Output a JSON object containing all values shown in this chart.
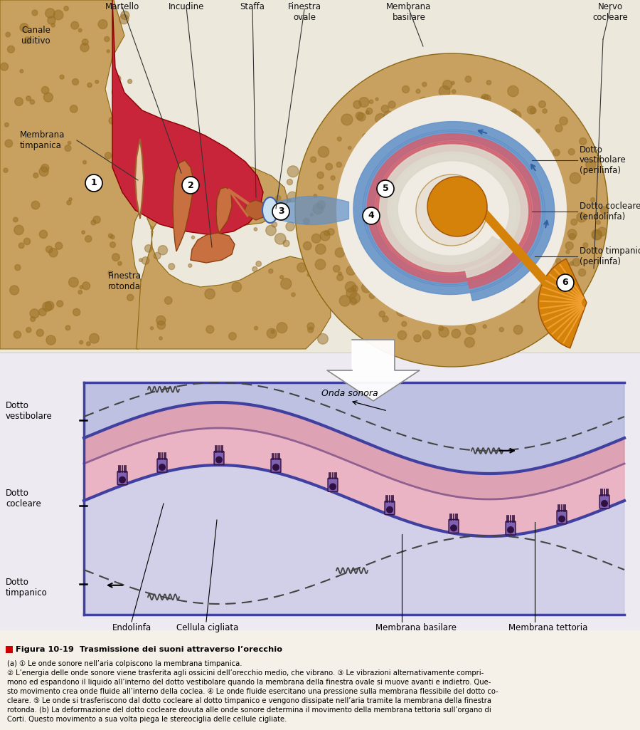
{
  "bg_color": "#f5f0e8",
  "title_color": "#cc0000",
  "figure_label": "Figura 10-19",
  "figure_title": "Trasmissione dei suoni attraverso l’orecchio",
  "colors": {
    "ear_red": "#c8253a",
    "bone_tan": "#c8a060",
    "bone_dark": "#8b6914",
    "bone_dot": "#9a7025",
    "ossicle": "#c87040",
    "ossicle_dark": "#8b4010",
    "nerve_orange": "#d4820a",
    "nerve_dark": "#a05008",
    "dotto_vest_blue": "#6090c8",
    "dotto_cocleare_pink": "#d06070",
    "dotto_timp_light": "#e8ddd0",
    "membrane_blue": "#4060a8",
    "wave_blue": "#3060a0",
    "label_line": "#333333",
    "dashed_line": "#555555",
    "band_blue": "#7080c8",
    "band_pink": "#d06880",
    "band_light_pink": "#e890a8",
    "band_purp": "#a0a0d8",
    "hair_cell": "#8060b0",
    "hair_dark": "#301040",
    "red_sq": "#cc0000",
    "caption_text": "#111111"
  },
  "caption_lines": [
    "(a) ① Le onde sonore nell’aria colpiscono la membrana timpanica.",
    "② L’energia delle onde sonore viene trasferita agli ossicini dell’orecchio medio, che vibrano. ③ Le vibrazioni alternativamente compri-",
    "mono ed espandono il liquido all’interno del dotto vestibolare quando la membrana della finestra ovale si muove avanti e indietro. Que-",
    "sto movimento crea onde fluide all’interno della coclea. ④ Le onde fluide esercitano una pressione sulla membrana flessibile del dotto co-",
    "cleare. ⑤ Le onde si trasferiscono dal dotto cocleare al dotto timpanico e vengono dissipate nell’aria tramite la membrana della finestra",
    "rotonda. (b) La deformazione del dotto cocleare dovuta alle onde sonore determina il movimento della membrana tettoria sull’organo di",
    "Corti. Questo movimento a sua volta piega le stereociglia delle cellule cigliate."
  ]
}
